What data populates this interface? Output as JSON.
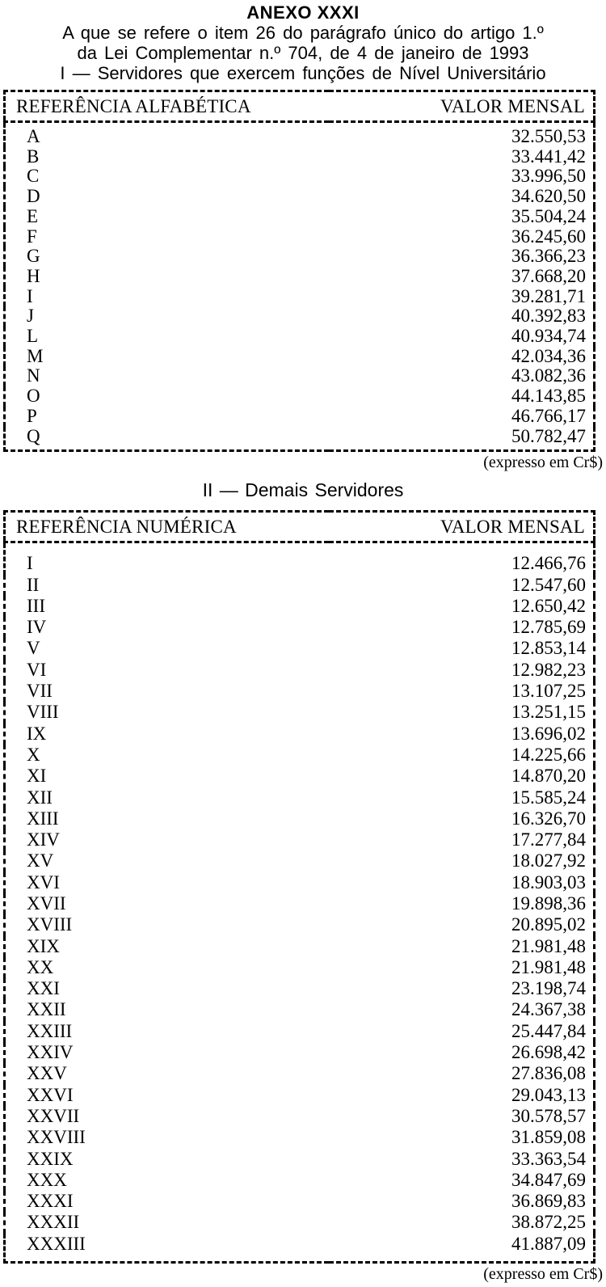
{
  "header": {
    "title": "ANEXO XXXI",
    "subtitle_line1": "A que se refere o item 26 do parágrafo único do artigo 1.º",
    "subtitle_line2": "da Lei Complementar n.º 704, de 4 de janeiro de 1993"
  },
  "sections": [
    {
      "heading": "I — Servidores que exercem funções de Nível Universitário"
    },
    {
      "heading": "II — Demais Servidores"
    }
  ],
  "tables": [
    {
      "columns": [
        "REFERÊNCIA ALFABÉTICA",
        "VALOR MENSAL"
      ],
      "rows": [
        [
          "A",
          "32.550,53"
        ],
        [
          "B",
          "33.441,42"
        ],
        [
          "C",
          "33.996,50"
        ],
        [
          "D",
          "34.620,50"
        ],
        [
          "E",
          "35.504,24"
        ],
        [
          "F",
          "36.245,60"
        ],
        [
          "G",
          "36.366,23"
        ],
        [
          "H",
          "37.668,20"
        ],
        [
          "I",
          "39.281,71"
        ],
        [
          "J",
          "40.392,83"
        ],
        [
          "L",
          "40.934,74"
        ],
        [
          "M",
          "42.034,36"
        ],
        [
          "N",
          "43.082,36"
        ],
        [
          "O",
          "44.143,85"
        ],
        [
          "P",
          "46.766,17"
        ],
        [
          "Q",
          "50.782,47"
        ]
      ],
      "footnote": "(expresso em Cr$)"
    },
    {
      "columns": [
        "REFERÊNCIA NUMÉRICA",
        "VALOR MENSAL"
      ],
      "rows": [
        [
          "I",
          "12.466,76"
        ],
        [
          "II",
          "12.547,60"
        ],
        [
          "III",
          "12.650,42"
        ],
        [
          "IV",
          "12.785,69"
        ],
        [
          "V",
          "12.853,14"
        ],
        [
          "VI",
          "12.982,23"
        ],
        [
          "VII",
          "13.107,25"
        ],
        [
          "VIII",
          "13.251,15"
        ],
        [
          "IX",
          "13.696,02"
        ],
        [
          "X",
          "14.225,66"
        ],
        [
          "XI",
          "14.870,20"
        ],
        [
          "XII",
          "15.585,24"
        ],
        [
          "XIII",
          "16.326,70"
        ],
        [
          "XIV",
          "17.277,84"
        ],
        [
          "XV",
          "18.027,92"
        ],
        [
          "XVI",
          "18.903,03"
        ],
        [
          "XVII",
          "19.898,36"
        ],
        [
          "XVIII",
          "20.895,02"
        ],
        [
          "XIX",
          "21.981,48"
        ],
        [
          "XX",
          "21.981,48"
        ],
        [
          "XXI",
          "23.198,74"
        ],
        [
          "XXII",
          "24.367,38"
        ],
        [
          "XXIII",
          "25.447,84"
        ],
        [
          "XXIV",
          "26.698,42"
        ],
        [
          "XXV",
          "27.836,08"
        ],
        [
          "XXVI",
          "29.043,13"
        ],
        [
          "XXVII",
          "30.578,57"
        ],
        [
          "XXVIII",
          "31.859,08"
        ],
        [
          "XXIX",
          "33.363,54"
        ],
        [
          "XXX",
          "34.847,69"
        ],
        [
          "XXXI",
          "36.869,83"
        ],
        [
          "XXXII",
          "38.872,25"
        ],
        [
          "XXXIII",
          "41.887,09"
        ]
      ],
      "footnote": "(expresso em Cr$)"
    }
  ],
  "colors": {
    "text": "#000000",
    "background": "#ffffff",
    "border": "#000000"
  }
}
